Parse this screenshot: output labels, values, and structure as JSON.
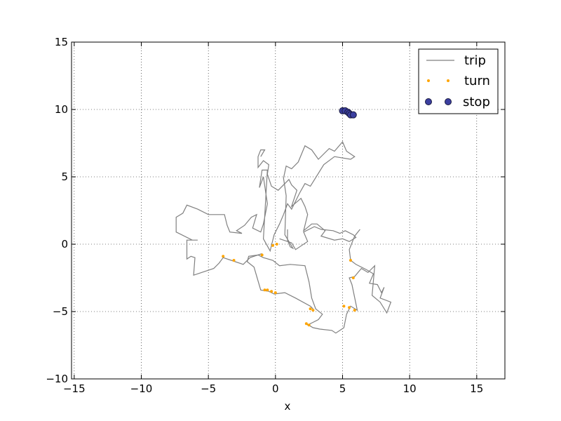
{
  "chart_data": {
    "type": "scatter",
    "title": "",
    "xlabel": "x",
    "ylabel": "",
    "xlim": [
      -15.2,
      17.1
    ],
    "ylim": [
      -10,
      15
    ],
    "xticks": [
      -15,
      -10,
      -5,
      0,
      5,
      10,
      15
    ],
    "yticks": [
      -10,
      -5,
      0,
      5,
      10,
      15
    ],
    "xtick_labels": [
      "−15",
      "−10",
      "−5",
      "0",
      "5",
      "10",
      "15"
    ],
    "ytick_labels": [
      "−10",
      "−5",
      "0",
      "5",
      "10",
      "15"
    ],
    "grid": true,
    "legend_position": "top-right",
    "colors": {
      "trip": "#808080",
      "turn": "#ffa500",
      "stop": "#3b3fa0",
      "stop_edge": "#1a1a40"
    },
    "series": [
      {
        "name": "trip",
        "style": "line",
        "x": [
          2.8,
          2.6,
          1.5,
          0.7,
          -0.1,
          -0.5,
          -1.1,
          -1.6,
          -2.1,
          -2.0,
          -1.3,
          -0.9,
          -0.2,
          0.3,
          1.1,
          2.2,
          2.5,
          2.7,
          3.0,
          3.5,
          3.2,
          2.8,
          2.4,
          2.3,
          2.8,
          3.3,
          4.2,
          4.5,
          5.1,
          5.3,
          5.6,
          6.1,
          5.7,
          5.5,
          5.9,
          6.4,
          6.9,
          7.4,
          7.2,
          7.8,
          8.3,
          8.6,
          7.8,
          8.1,
          7.9,
          7.6,
          7.0,
          7.3,
          6.8,
          6.0,
          5.6,
          5.5,
          5.9,
          6.3
        ],
        "y": [
          -4.8,
          -4.6,
          -4.0,
          -3.6,
          -3.7,
          -3.5,
          -3.4,
          -1.7,
          -1.3,
          -0.9,
          -0.8,
          -1.0,
          -1.2,
          -1.6,
          -1.5,
          -1.6,
          -2.8,
          -4.0,
          -4.8,
          -5.2,
          -5.6,
          -5.8,
          -6.0,
          -5.9,
          -6.2,
          -6.3,
          -6.4,
          -6.6,
          -6.2,
          -5.2,
          -4.6,
          -4.9,
          -3.0,
          -2.5,
          -2.4,
          -1.8,
          -2.1,
          -1.6,
          -3.8,
          -4.3,
          -5.1,
          -4.3,
          -4.0,
          -3.2,
          -3.6,
          -3.0,
          -2.9,
          -2.2,
          -1.9,
          -1.5,
          -1.2,
          -0.4,
          0.6,
          1.1
        ]
      },
      {
        "name": "trip",
        "style": "line",
        "x": [
          -1.0,
          -1.9,
          -2.4,
          -3.3,
          -3.9,
          -4.2,
          -4.6,
          -6.1,
          -6.0,
          -6.3,
          -6.6,
          -6.6,
          -5.8,
          -6.2,
          -7.4,
          -7.4,
          -6.9,
          -6.6,
          -5.8,
          -5.0,
          -3.8,
          -3.6,
          -3.4,
          -2.5,
          -2.9,
          -2.9,
          -2.3,
          -1.8,
          -1.4,
          -1.7,
          -1.1,
          -0.9,
          -0.6,
          -0.9,
          -1.2,
          -1.0,
          -0.6,
          -0.9,
          -0.4,
          -0.1,
          0.3,
          0.6
        ],
        "y": [
          -0.7,
          -1.0,
          -1.5,
          -1.2,
          -1.0,
          -1.4,
          -1.8,
          -2.3,
          -1.0,
          -0.9,
          -1.1,
          0.3,
          0.3,
          0.3,
          0.9,
          2.0,
          2.3,
          2.9,
          2.6,
          2.2,
          2.2,
          1.4,
          0.9,
          0.8,
          1.0,
          1.0,
          1.4,
          2.0,
          2.2,
          1.2,
          0.9,
          1.5,
          3.0,
          5.0,
          4.2,
          5.5,
          5.5,
          0.4,
          -0.5,
          0.7,
          1.5,
          2.2
        ]
      },
      {
        "name": "trip",
        "style": "line",
        "x": [
          0.6,
          0.9,
          1.2,
          1.8,
          2.2,
          2.6,
          3.6,
          4.4,
          5.6,
          5.9,
          5.3,
          5.0,
          4.4,
          4.0,
          3.2,
          2.7,
          2.2,
          1.7,
          1.2,
          0.8,
          0.6,
          0.8,
          0.7,
          1.0,
          1.3,
          1.1,
          0.9,
          0.9
        ],
        "y": [
          2.2,
          3.0,
          2.6,
          3.8,
          4.5,
          4.3,
          5.9,
          6.5,
          6.3,
          6.5,
          6.9,
          7.6,
          6.9,
          7.1,
          6.3,
          7.0,
          7.3,
          6.1,
          5.6,
          5.8,
          4.9,
          3.6,
          0.7,
          0.2,
          -0.3,
          -0.2,
          0.3,
          1.1
        ]
      },
      {
        "name": "trip",
        "style": "line",
        "x": [
          0.3,
          1.2,
          1.5,
          2.4,
          2.1,
          2.9,
          3.4,
          4.3,
          4.8,
          5.2,
          5.8,
          6.0,
          5.5,
          5.0,
          4.4,
          3.4,
          3.7,
          3.1,
          2.7,
          2.1,
          2.4,
          2.2,
          1.9,
          1.2,
          1.6,
          1.2,
          1.0,
          0.2,
          -0.3,
          -0.6,
          -0.5,
          -0.9,
          -1.3,
          -1.3,
          -1.1,
          -0.8,
          -1.1
        ],
        "y": [
          0.4,
          0.1,
          -0.4,
          0.2,
          0.9,
          1.3,
          1.1,
          1.0,
          0.8,
          1.0,
          0.7,
          0.5,
          0.2,
          0.4,
          0.3,
          0.6,
          1.0,
          1.5,
          1.5,
          1.0,
          2.2,
          2.8,
          3.4,
          2.8,
          4.0,
          4.4,
          4.8,
          4.0,
          4.3,
          5.2,
          5.9,
          6.2,
          5.7,
          6.5,
          7.0,
          7.0,
          6.5
        ]
      }
    ],
    "series_turn": {
      "name": "turn",
      "style": "points",
      "x": [
        -3.9,
        -3.1,
        -1.0,
        -0.2,
        0.1,
        -0.8,
        -0.6,
        -0.3,
        0.0,
        2.6,
        2.8,
        2.3,
        2.5,
        5.1,
        5.5,
        5.9,
        5.6,
        5.8
      ],
      "y": [
        -0.9,
        -1.2,
        -0.8,
        -0.1,
        0.0,
        -3.4,
        -3.4,
        -3.5,
        -3.6,
        -4.8,
        -4.9,
        -5.9,
        -6.0,
        -4.6,
        -4.7,
        -4.9,
        -1.2,
        -2.5
      ]
    },
    "series_stop": {
      "name": "stop",
      "style": "points",
      "x": [
        5.0,
        5.2,
        5.4,
        5.5,
        5.6,
        5.8
      ],
      "y": [
        9.9,
        9.9,
        9.8,
        9.7,
        9.6,
        9.6
      ]
    },
    "legend": [
      "trip",
      "turn",
      "stop"
    ]
  }
}
